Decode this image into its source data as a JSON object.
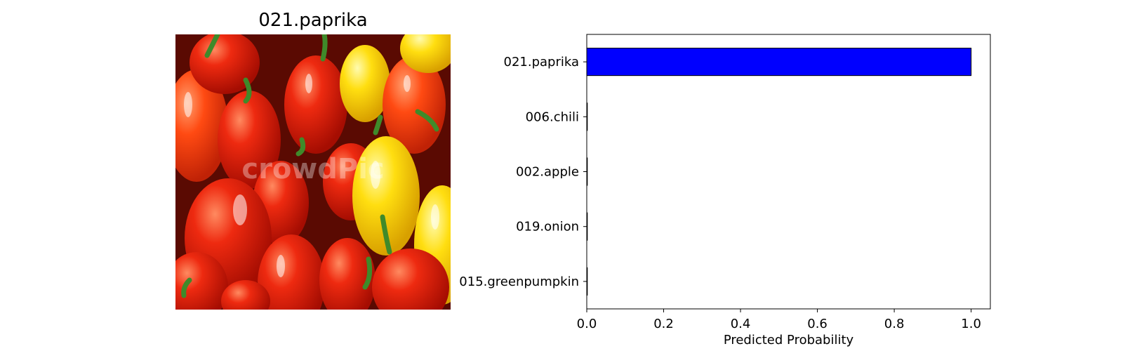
{
  "image_panel": {
    "title": "021.paprika",
    "watermark": "crowdPic",
    "subject": "red and yellow bell peppers",
    "colors": {
      "red": "#e8200a",
      "orange": "#ff4a12",
      "yellow": "#ffd400",
      "stem": "#3f8a2a",
      "shadow": "#5a0a02"
    }
  },
  "chart_data": {
    "type": "bar",
    "orientation": "horizontal",
    "categories": [
      "021.paprika",
      "006.chili",
      "002.apple",
      "019.onion",
      "015.greenpumpkin"
    ],
    "values": [
      1.0,
      0.0,
      0.0,
      0.0,
      0.0
    ],
    "title": "",
    "xlabel": "Predicted Probability",
    "ylabel": "",
    "xlim": [
      0,
      1.05
    ],
    "xticks": [
      0.0,
      0.2,
      0.4,
      0.6,
      0.8,
      1.0
    ],
    "xtick_labels": [
      "0.0",
      "0.2",
      "0.4",
      "0.6",
      "0.8",
      "1.0"
    ],
    "bar_color": "#0000ff",
    "edge_color": "#000000",
    "grid": false,
    "legend": "none"
  }
}
